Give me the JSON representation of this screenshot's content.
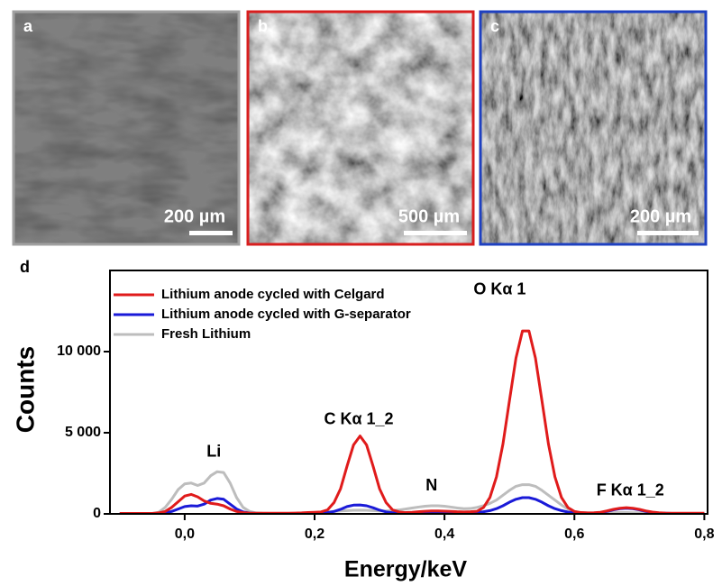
{
  "panels": [
    {
      "label": "a",
      "scale_bar": "200 µm"
    },
    {
      "label": "b",
      "scale_bar": "500 µm"
    },
    {
      "label": "c",
      "scale_bar": "200 µm"
    }
  ],
  "chart_data": {
    "type": "line",
    "label": "d",
    "x_label": "Energy/keV",
    "y_label": "Counts",
    "xlim": [
      -0.115,
      0.805
    ],
    "ylim": [
      0,
      15000
    ],
    "xticks": [
      {
        "value": 0,
        "label": "0,0"
      },
      {
        "value": 0.2,
        "label": "0,2"
      },
      {
        "value": 0.4,
        "label": "0,4"
      },
      {
        "value": 0.6,
        "label": "0,6"
      },
      {
        "value": 0.8,
        "label": "0,8"
      }
    ],
    "yticks": [
      0,
      {
        "value": 5000,
        "label": "5 000"
      },
      {
        "value": 10000,
        "label": "10 000"
      }
    ],
    "legend": "upper left",
    "x": [
      -0.1,
      -0.09,
      -0.08,
      -0.07,
      -0.06,
      -0.05,
      -0.04,
      -0.03,
      -0.02,
      -0.01,
      0,
      0.01,
      0.02,
      0.03,
      0.04,
      0.05,
      0.06,
      0.07,
      0.08,
      0.09,
      0.1,
      0.11,
      0.12,
      0.13,
      0.14,
      0.15,
      0.16,
      0.17,
      0.18,
      0.19,
      0.2,
      0.21,
      0.22,
      0.23,
      0.24,
      0.25,
      0.26,
      0.27,
      0.28,
      0.29,
      0.3,
      0.31,
      0.32,
      0.33,
      0.34,
      0.35,
      0.36,
      0.37,
      0.38,
      0.39,
      0.4,
      0.41,
      0.42,
      0.43,
      0.44,
      0.45,
      0.46,
      0.47,
      0.48,
      0.49,
      0.5,
      0.51,
      0.52,
      0.53,
      0.54,
      0.55,
      0.56,
      0.57,
      0.58,
      0.59,
      0.6,
      0.61,
      0.62,
      0.63,
      0.64,
      0.65,
      0.66,
      0.67,
      0.68,
      0.69,
      0.7,
      0.71,
      0.72,
      0.73,
      0.74,
      0.75,
      0.76,
      0.77,
      0.78,
      0.79,
      0.8
    ],
    "series": [
      {
        "name": "Fresh Lithium",
        "color": "#bdbdbd",
        "values": [
          20,
          20,
          20,
          20,
          20,
          20,
          100,
          400,
          900,
          1500,
          1850,
          1900,
          1750,
          1900,
          2350,
          2600,
          2550,
          1900,
          1000,
          400,
          150,
          60,
          40,
          30,
          30,
          30,
          30,
          30,
          40,
          60,
          80,
          100,
          120,
          150,
          180,
          200,
          220,
          230,
          220,
          200,
          180,
          180,
          200,
          240,
          300,
          360,
          420,
          470,
          500,
          500,
          470,
          420,
          360,
          320,
          330,
          400,
          500,
          650,
          850,
          1150,
          1450,
          1700,
          1800,
          1800,
          1700,
          1450,
          1150,
          850,
          550,
          300,
          150,
          80,
          60,
          50,
          50,
          60,
          70,
          80,
          80,
          70,
          60,
          50,
          40,
          30,
          30,
          30,
          30,
          30,
          30,
          30,
          30
        ]
      },
      {
        "name": "Lithium anode cycled with G-separator",
        "color": "#1a1ad8",
        "values": [
          20,
          20,
          20,
          20,
          20,
          20,
          30,
          60,
          150,
          300,
          450,
          500,
          480,
          600,
          850,
          950,
          900,
          600,
          300,
          120,
          50,
          30,
          30,
          30,
          30,
          30,
          30,
          30,
          30,
          30,
          40,
          50,
          80,
          150,
          280,
          450,
          540,
          550,
          500,
          380,
          230,
          120,
          70,
          50,
          40,
          50,
          60,
          70,
          80,
          80,
          80,
          70,
          60,
          60,
          70,
          90,
          130,
          200,
          320,
          500,
          720,
          900,
          1000,
          1000,
          900,
          720,
          500,
          320,
          200,
          110,
          60,
          40,
          40,
          50,
          80,
          150,
          250,
          320,
          350,
          320,
          250,
          150,
          80,
          50,
          40,
          30,
          30,
          30,
          30,
          30,
          30
        ]
      },
      {
        "name": "Lithium anode cycled with Celgard",
        "color": "#e01b1b",
        "values": [
          30,
          30,
          30,
          30,
          30,
          30,
          60,
          150,
          400,
          750,
          1100,
          1200,
          1050,
          800,
          650,
          600,
          500,
          300,
          150,
          80,
          50,
          40,
          40,
          40,
          40,
          40,
          40,
          50,
          60,
          80,
          100,
          120,
          250,
          700,
          1550,
          2950,
          4250,
          4800,
          4250,
          2950,
          1550,
          700,
          250,
          120,
          80,
          100,
          130,
          160,
          180,
          180,
          170,
          150,
          130,
          120,
          130,
          160,
          390,
          1020,
          2280,
          4310,
          6980,
          9600,
          11270,
          11270,
          9600,
          6980,
          4310,
          2280,
          1020,
          390,
          150,
          80,
          60,
          70,
          100,
          180,
          280,
          350,
          380,
          350,
          280,
          180,
          110,
          70,
          50,
          40,
          40,
          40,
          40,
          40,
          40
        ]
      }
    ],
    "legend_order": [
      2,
      1,
      0
    ],
    "annotations": [
      {
        "text": "Li",
        "x": 0.045,
        "y": 3800
      },
      {
        "text": "C Kα 1_2",
        "x": 0.268,
        "y": 5800
      },
      {
        "text": "N",
        "x": 0.38,
        "y": 1700
      },
      {
        "text": "O Kα 1",
        "x": 0.485,
        "y": 13800
      },
      {
        "text": "F Kα 1_2",
        "x": 0.686,
        "y": 1400
      }
    ]
  }
}
